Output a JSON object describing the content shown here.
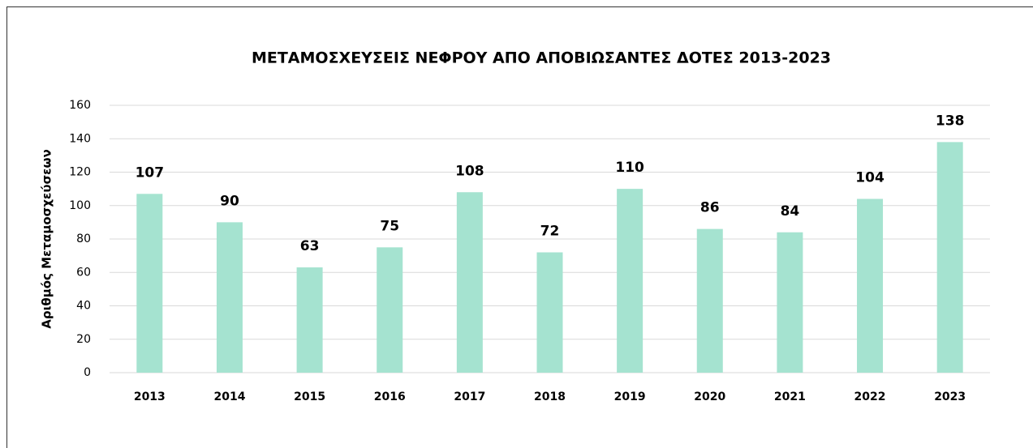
{
  "chart_data": {
    "type": "bar",
    "title": "ΜΕΤΑΜΟΣΧΕΥΣΕΙΣ ΝΕΦΡΟΥ ΑΠΟ ΑΠΟΒΙΩΣΑΝΤΕΣ ΔΟΤΕΣ 2013-2023",
    "y_label": "Αριθμός Μεταμοσχεύσεων",
    "categories": [
      "2013",
      "2014",
      "2015",
      "2016",
      "2017",
      "2018",
      "2019",
      "2020",
      "2021",
      "2022",
      "2023"
    ],
    "values": [
      107,
      90,
      63,
      75,
      108,
      72,
      110,
      86,
      84,
      104,
      138
    ],
    "color": "#a5e3d0",
    "ylim": [
      0,
      160
    ],
    "yticks": [
      0,
      20,
      40,
      60,
      80,
      100,
      120,
      140,
      160
    ],
    "grid": true
  }
}
